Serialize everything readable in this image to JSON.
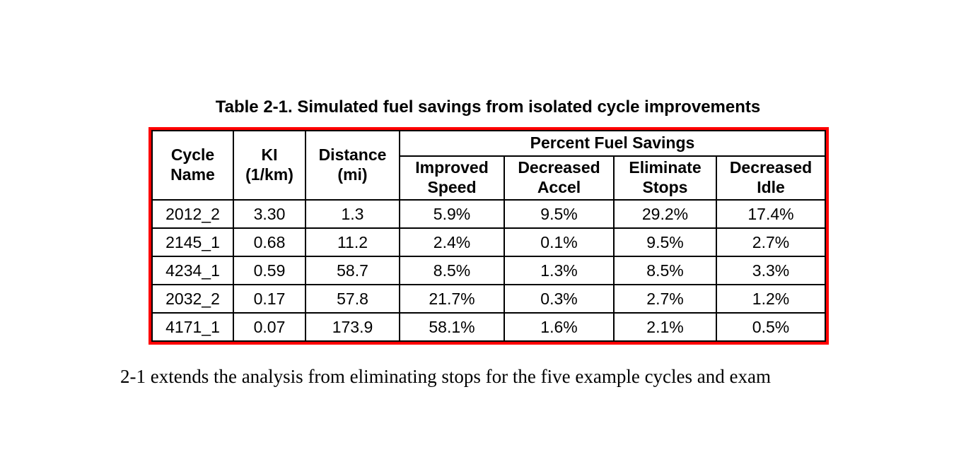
{
  "title": "Table 2-1. Simulated fuel savings from isolated cycle improvements",
  "table": {
    "group_header": "Percent Fuel Savings",
    "columns": [
      {
        "key": "cycle-name",
        "label": "Cycle\nName"
      },
      {
        "key": "ki",
        "label": "KI\n(1/km)"
      },
      {
        "key": "distance",
        "label": "Distance\n(mi)"
      },
      {
        "key": "improved-speed",
        "label": "Improved\nSpeed"
      },
      {
        "key": "decreased-accel",
        "label": "Decreased\nAccel"
      },
      {
        "key": "eliminate-stops",
        "label": "Eliminate\nStops"
      },
      {
        "key": "decreased-idle",
        "label": "Decreased\nIdle"
      }
    ],
    "rows": [
      [
        "2012_2",
        "3.30",
        "1.3",
        "5.9%",
        "9.5%",
        "29.2%",
        "17.4%"
      ],
      [
        "2145_1",
        "0.68",
        "11.2",
        "2.4%",
        "0.1%",
        "9.5%",
        "2.7%"
      ],
      [
        "4234_1",
        "0.59",
        "58.7",
        "8.5%",
        "1.3%",
        "8.5%",
        "3.3%"
      ],
      [
        "2032_2",
        "0.17",
        "57.8",
        "21.7%",
        "0.3%",
        "2.7%",
        "1.2%"
      ],
      [
        "4171_1",
        "0.07",
        "173.9",
        "58.1%",
        "1.6%",
        "2.1%",
        "0.5%"
      ]
    ]
  },
  "body_text": "2-1 extends the analysis from eliminating stops for the five example cycles and exam",
  "colors": {
    "table_outline": "#ff0000",
    "grid_lines": "#000000",
    "text": "#000000",
    "background": "#ffffff"
  }
}
